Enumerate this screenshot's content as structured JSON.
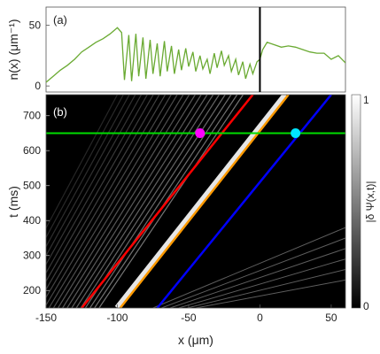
{
  "chart_data": [
    {
      "panel_label": "(a)",
      "type": "line",
      "ylabel": "n(x) (μm⁻¹)",
      "yticks": [
        "0",
        "50"
      ],
      "ylim": [
        -5,
        65
      ],
      "xlim": [
        -150,
        60
      ],
      "vertical_marker_x": 0,
      "colors": {
        "line": "#6aaa32",
        "marker": "#000000"
      },
      "series": [
        {
          "x": [
            -150,
            -145,
            -140,
            -135,
            -130,
            -125,
            -120,
            -115,
            -110,
            -105,
            -100,
            -97,
            -95,
            -92,
            -90,
            -87,
            -85,
            -82,
            -80,
            -77,
            -75,
            -72,
            -70,
            -67,
            -65,
            -62,
            -60,
            -57,
            -55,
            -52,
            -50,
            -47,
            -45,
            -42,
            -40,
            -37,
            -35,
            -32,
            -30,
            -27,
            -25,
            -22,
            -20,
            -17,
            -15,
            -12,
            -10,
            -7,
            -5,
            -2,
            0,
            2,
            5,
            10,
            15,
            20,
            25,
            30,
            35,
            40,
            45,
            50,
            55,
            60
          ],
          "values": [
            3,
            8,
            13,
            17,
            22,
            28,
            32,
            36,
            39,
            43,
            48,
            44,
            5,
            42,
            4,
            43,
            8,
            40,
            6,
            38,
            10,
            35,
            8,
            37,
            12,
            33,
            10,
            30,
            13,
            31,
            16,
            28,
            12,
            25,
            14,
            22,
            10,
            27,
            15,
            29,
            17,
            25,
            12,
            22,
            9,
            20,
            6,
            18,
            10,
            20,
            22,
            30,
            36,
            34,
            32,
            33,
            32,
            30,
            28,
            27,
            27,
            22,
            25,
            19
          ]
        }
      ]
    },
    {
      "panel_label": "(b)",
      "type": "heatmap",
      "xlabel": "x (μm)",
      "ylabel": "t (ms)",
      "xticks": [
        "-150",
        "-100",
        "-50",
        "0",
        "50"
      ],
      "yticks": [
        "200",
        "300",
        "400",
        "500",
        "600",
        "700"
      ],
      "xlim": [
        -150,
        60
      ],
      "ylim": [
        150,
        760
      ],
      "colorbar": {
        "label": "|δ Ψ(x,t)|",
        "ticks": [
          "0",
          "1"
        ],
        "range": [
          0,
          1
        ]
      },
      "lines": [
        {
          "color": "#ff0000",
          "x": [
            -125,
            -5
          ],
          "y": [
            150,
            760
          ]
        },
        {
          "color": "#ff9a00",
          "x": [
            -98,
            20
          ],
          "y": [
            150,
            760
          ]
        },
        {
          "color": "#0000ff",
          "x": [
            -72,
            50
          ],
          "y": [
            150,
            760
          ]
        }
      ],
      "horizontal_line": {
        "color": "#00dd00",
        "y": 650
      },
      "markers": [
        {
          "color": "#ff00ff",
          "x": -42,
          "y": 650
        },
        {
          "color": "#00e5ff",
          "x": 25,
          "y": 650
        }
      ]
    }
  ]
}
